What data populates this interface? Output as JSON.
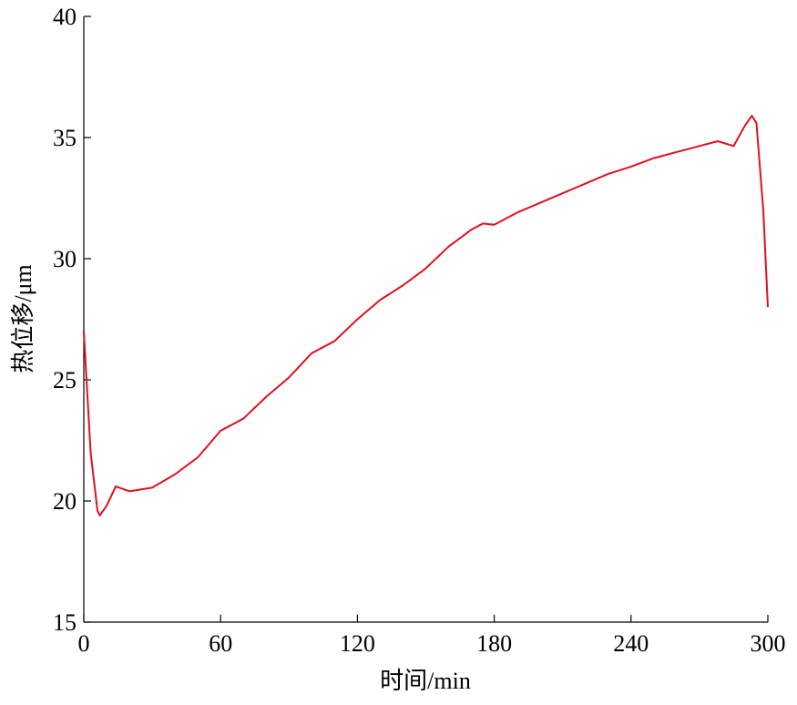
{
  "chart_data": {
    "type": "line",
    "x_label": "时间/min",
    "y_label": "热位移/μm",
    "xlim": [
      0,
      300
    ],
    "xticks": [
      0,
      60,
      120,
      180,
      240,
      300
    ],
    "ylim": [
      15,
      40
    ],
    "yticks": [
      15,
      20,
      25,
      30,
      35,
      40
    ],
    "x": [
      0,
      3,
      6,
      7,
      10,
      14,
      20,
      30,
      40,
      50,
      60,
      70,
      80,
      90,
      100,
      110,
      120,
      130,
      140,
      150,
      160,
      170,
      175,
      180,
      190,
      200,
      210,
      220,
      230,
      240,
      250,
      260,
      270,
      278,
      285,
      290,
      293,
      295,
      298,
      300
    ],
    "series": [
      {
        "name": "热位移",
        "color": "#e0101e",
        "values": [
          27,
          22,
          19.6,
          19.4,
          19.8,
          20.6,
          20.4,
          20.55,
          21.1,
          21.8,
          22.9,
          23.4,
          24.3,
          25.1,
          26.1,
          26.6,
          27.5,
          28.3,
          28.9,
          29.6,
          30.5,
          31.2,
          31.45,
          31.4,
          31.9,
          32.3,
          32.7,
          33.1,
          33.5,
          33.8,
          34.15,
          34.4,
          34.65,
          34.85,
          34.65,
          35.5,
          35.9,
          35.6,
          32,
          28
        ]
      }
    ]
  }
}
